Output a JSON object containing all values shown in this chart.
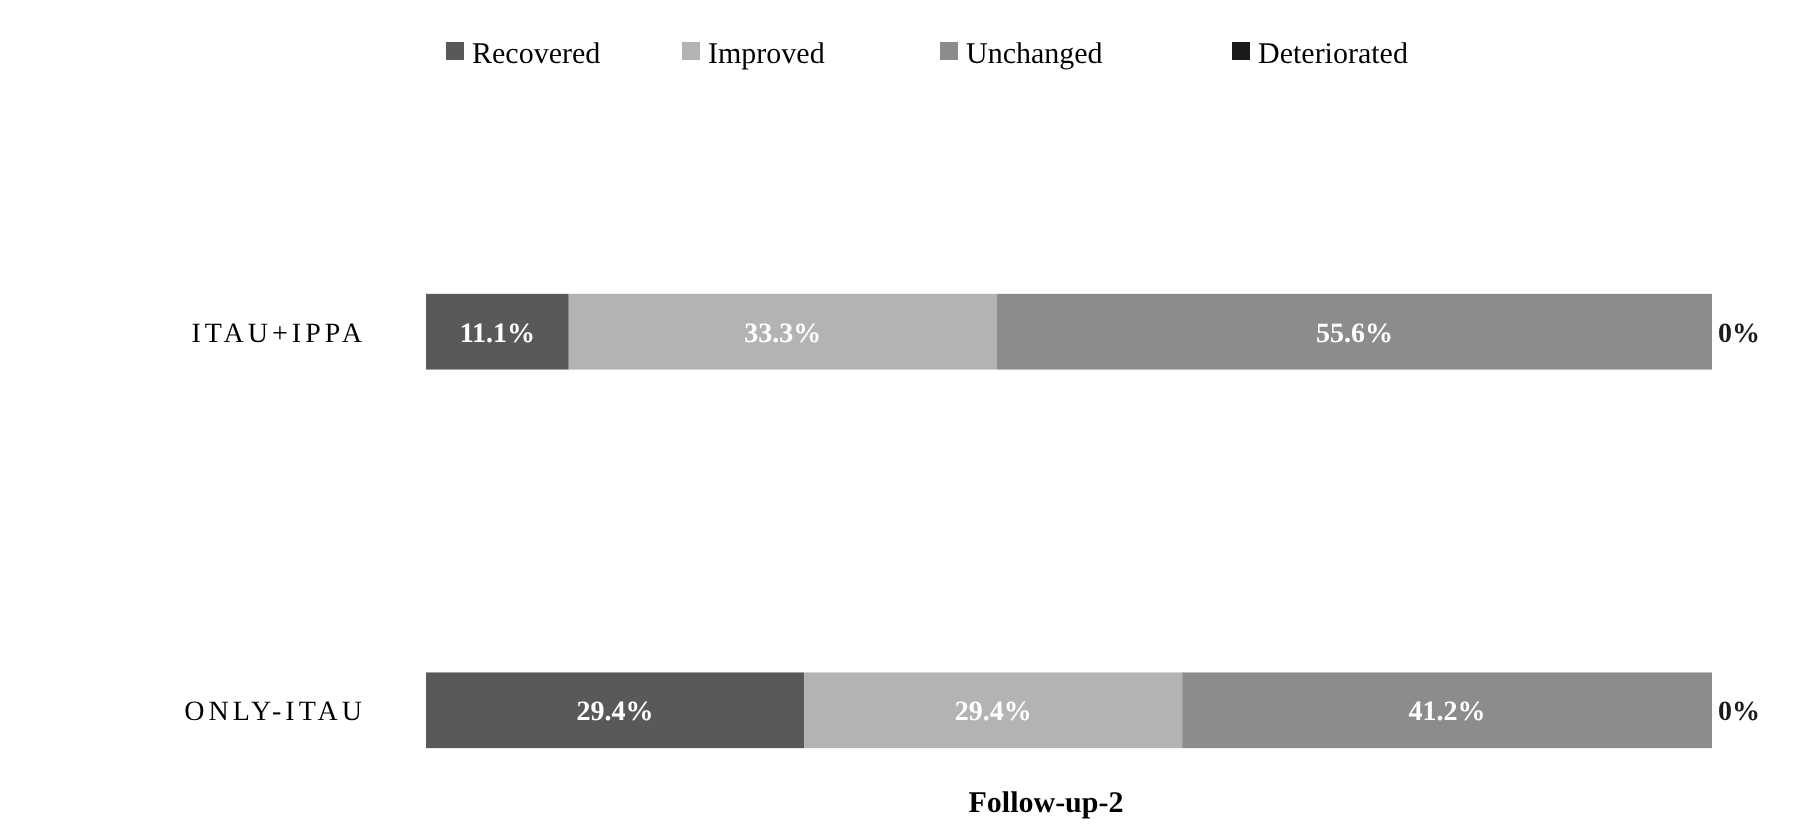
{
  "chart_data": {
    "type": "bar",
    "orientation": "horizontal",
    "stacked": true,
    "legend": "top",
    "xlabel": "Follow-up-2",
    "categories": [
      "ITAU+IPPA",
      "ONLY-ITAU"
    ],
    "series": [
      {
        "name": "Recovered",
        "color": "#595959",
        "values": [
          11.1,
          29.4
        ],
        "value_labels": [
          "11.1%",
          "29.4%"
        ]
      },
      {
        "name": "Improved",
        "color": "#b3b3b3",
        "values": [
          33.3,
          29.4
        ],
        "value_labels": [
          "33.3%",
          "29.4%"
        ]
      },
      {
        "name": "Unchanged",
        "color": "#8c8c8c",
        "values": [
          55.6,
          41.2
        ],
        "value_labels": [
          "55.6%",
          "41.2%"
        ]
      },
      {
        "name": "Deteriorated",
        "color": "#1a1a1a",
        "values": [
          0,
          0
        ],
        "value_labels": [
          "0%",
          "0%"
        ]
      }
    ]
  }
}
